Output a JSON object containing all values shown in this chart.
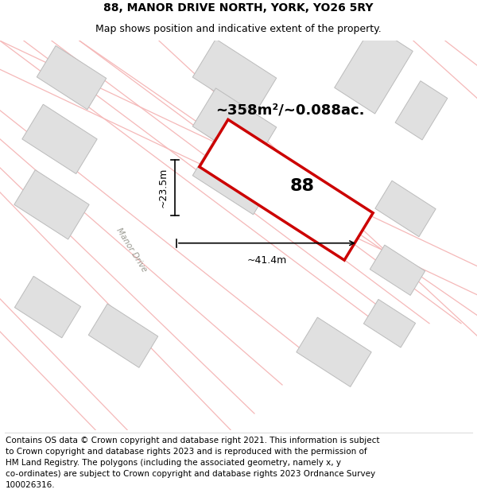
{
  "title": "88, MANOR DRIVE NORTH, YORK, YO26 5RY",
  "subtitle": "Map shows position and indicative extent of the property.",
  "area_text": "~358m²/~0.088ac.",
  "width_text": "~41.4m",
  "height_text": "~23.5m",
  "number_text": "88",
  "road_label": "Manor Drive",
  "bg_color": "#f7f6f4",
  "main_polygon_fill": "#ffffff",
  "main_polygon_edge": "#cc0000",
  "grey_fill": "#e0e0e0",
  "grey_edge": "#cccccc",
  "road_color": "#f5b8b8",
  "road_outline_color": "#e88888",
  "title_fontsize": 10,
  "subtitle_fontsize": 9,
  "footer_fontsize": 7.5,
  "footer_lines": [
    "Contains OS data © Crown copyright and database right 2021. This information is subject",
    "to Crown copyright and database rights 2023 and is reproduced with the permission of",
    "HM Land Registry. The polygons (including the associated geometry, namely x, y",
    "co-ordinates) are subject to Crown copyright and database rights 2023 Ordnance Survey",
    "100026316."
  ]
}
